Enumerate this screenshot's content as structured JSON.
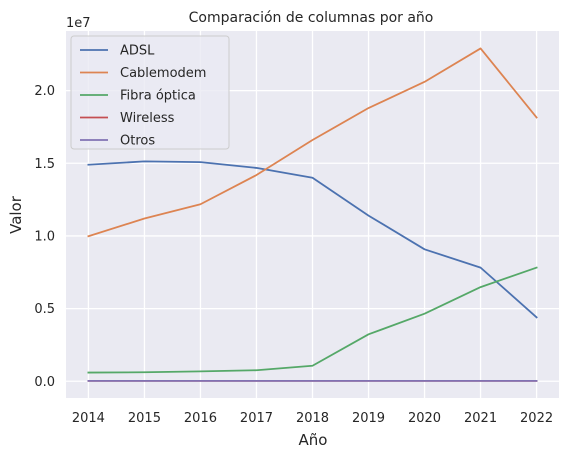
{
  "chart_data": {
    "type": "line",
    "title": "Comparación de columnas por año",
    "xlabel": "Año",
    "ylabel": "Valor",
    "y_offset_label": "1e7",
    "y_scale": 10000000,
    "x": [
      2014,
      2015,
      2016,
      2017,
      2018,
      2019,
      2020,
      2021,
      2022
    ],
    "x_ticks": [
      "2014",
      "2015",
      "2016",
      "2017",
      "2018",
      "2019",
      "2020",
      "2021",
      "2022"
    ],
    "y_ticks": [
      {
        "value": 0,
        "label": "0.0"
      },
      {
        "value": 5000000,
        "label": "0.5"
      },
      {
        "value": 10000000,
        "label": "1.0"
      },
      {
        "value": 15000000,
        "label": "1.5"
      },
      {
        "value": 20000000,
        "label": "2.0"
      }
    ],
    "xlim": [
      2013.6,
      2022.4
    ],
    "ylim": [
      -1150000,
      24100000
    ],
    "grid": true,
    "legend_position": "top-left",
    "background_color": "#eaeaf2",
    "series": [
      {
        "name": "ADSL",
        "color": "#4c72b0",
        "values": [
          14900000,
          15130000,
          15080000,
          14680000,
          14000000,
          11400000,
          9080000,
          7820000,
          4400000
        ]
      },
      {
        "name": "Cablemodem",
        "color": "#dd8452",
        "values": [
          9980000,
          11200000,
          12180000,
          14190000,
          16600000,
          18800000,
          20600000,
          22900000,
          18150000
        ]
      },
      {
        "name": "Fibra óptica",
        "color": "#55a868",
        "values": [
          600000,
          620000,
          680000,
          760000,
          1070000,
          3230000,
          4650000,
          6480000,
          7820000
        ]
      },
      {
        "name": "Wireless",
        "color": "#c44e52",
        "values": [
          30000,
          30000,
          30000,
          30000,
          30000,
          30000,
          30000,
          30000,
          30000
        ]
      },
      {
        "name": "Otros",
        "color": "#8172b3",
        "values": [
          30000,
          30000,
          30000,
          30000,
          30000,
          30000,
          30000,
          30000,
          30000
        ]
      }
    ]
  }
}
